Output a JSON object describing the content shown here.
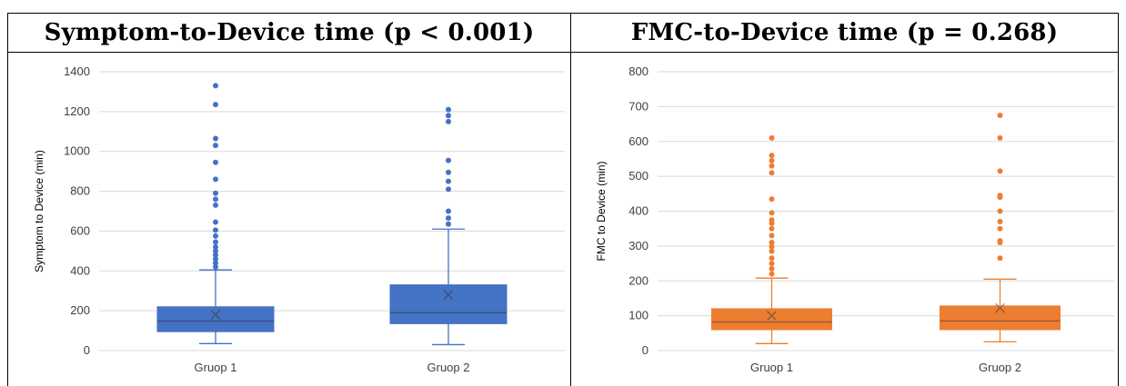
{
  "panels": [
    {
      "header": "Symptom-to-Device time (p < 0.001)"
    },
    {
      "header": "FMC-to-Device time (p = 0.268)"
    }
  ],
  "chart_data": [
    {
      "type": "box",
      "title": "Symptom-to-Device time (p < 0.001)",
      "ylabel": "Symptom to Device (min)",
      "xlabel": "",
      "ylim": [
        0,
        1400
      ],
      "yticks": [
        0,
        200,
        400,
        600,
        800,
        1000,
        1200,
        1400
      ],
      "grid": true,
      "color": "#4472c4",
      "categories": [
        "Gruop 1",
        "Gruop 2"
      ],
      "boxes": [
        {
          "category": "Gruop 1",
          "min": 35,
          "q1": 95,
          "median": 148,
          "mean": 180,
          "q3": 220,
          "max": 405,
          "outliers": [
            420,
            440,
            460,
            480,
            500,
            520,
            545,
            575,
            605,
            645,
            730,
            760,
            790,
            860,
            945,
            1030,
            1065,
            1235,
            1330
          ]
        },
        {
          "category": "Gruop 2",
          "min": 30,
          "q1": 135,
          "median": 190,
          "mean": 280,
          "q3": 330,
          "max": 610,
          "outliers": [
            635,
            665,
            700,
            810,
            850,
            895,
            955,
            1150,
            1180,
            1210
          ]
        }
      ]
    },
    {
      "type": "box",
      "title": "FMC-to-Device time (p = 0.268)",
      "ylabel": "FMC to Device (min)",
      "xlabel": "",
      "ylim": [
        0,
        800
      ],
      "yticks": [
        0,
        100,
        200,
        300,
        400,
        500,
        600,
        700,
        800
      ],
      "grid": true,
      "color": "#ed7d31",
      "categories": [
        "Gruop 1",
        "Gruop 2"
      ],
      "boxes": [
        {
          "category": "Gruop 1",
          "min": 20,
          "q1": 60,
          "median": 82,
          "mean": 100,
          "q3": 120,
          "max": 208,
          "outliers": [
            220,
            235,
            250,
            265,
            285,
            298,
            310,
            330,
            350,
            365,
            375,
            395,
            435,
            510,
            530,
            545,
            560,
            610
          ]
        },
        {
          "category": "Gruop 2",
          "min": 25,
          "q1": 60,
          "median": 85,
          "mean": 122,
          "q3": 128,
          "max": 205,
          "outliers": [
            265,
            310,
            315,
            350,
            370,
            400,
            440,
            445,
            515,
            610,
            675
          ]
        }
      ]
    }
  ]
}
